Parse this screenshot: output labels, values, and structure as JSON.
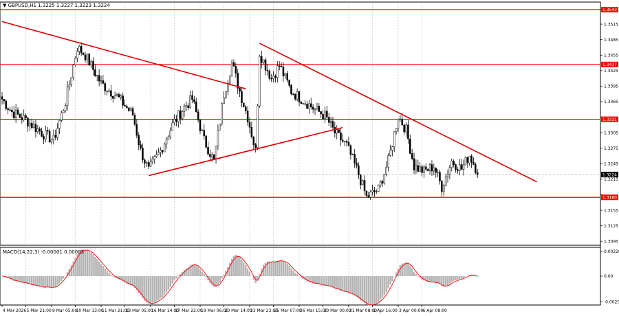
{
  "chart_data": {
    "type": "candlestick",
    "header": {
      "arrow": "▼",
      "text": "GBPUSD,H1 1.3225 1.3227 1.3223 1.3224"
    },
    "price_panel": {
      "ylim": [
        1.309,
        1.3555
      ],
      "ticks": [
        1.3543,
        1.3515,
        1.3485,
        1.3455,
        1.3425,
        1.3395,
        1.3365,
        1.3335,
        1.3305,
        1.3275,
        1.3245,
        1.3215,
        1.3185,
        1.3155,
        1.3125,
        1.3095
      ],
      "tick_labels": [
        "1.3543",
        "1.3515",
        "1.3485",
        "1.3455",
        "1.3425",
        "1.3395",
        "1.3365",
        "1.3335",
        "1.3305",
        "1.3275",
        "1.3245",
        "1.3215",
        "1.3185",
        "1.3155",
        "1.3125",
        "1.3095"
      ],
      "current_price": 1.3224,
      "current_price_label": "1.3224",
      "levels": [
        {
          "value": 1.3543,
          "label": "1.3543"
        },
        {
          "value": 1.3437,
          "label": "1.3437"
        },
        {
          "value": 1.3331,
          "label": "1.3331"
        },
        {
          "value": 1.318,
          "label": "1.3180"
        }
      ],
      "trendlines": [
        {
          "from": [
            0,
            1.352
          ],
          "to": [
            123,
            1.339
          ]
        },
        {
          "from": [
            74,
            1.3222
          ],
          "to": [
            172,
            1.3315
          ]
        },
        {
          "from": [
            130,
            1.3478
          ],
          "to": [
            270,
            1.321
          ]
        }
      ],
      "anchors": [
        [
          0,
          1.337
        ],
        [
          5,
          1.3345
        ],
        [
          12,
          1.333
        ],
        [
          20,
          1.3305
        ],
        [
          26,
          1.329
        ],
        [
          32,
          1.3365
        ],
        [
          38,
          1.347
        ],
        [
          42,
          1.3455
        ],
        [
          50,
          1.34
        ],
        [
          58,
          1.3375
        ],
        [
          66,
          1.334
        ],
        [
          70,
          1.327
        ],
        [
          74,
          1.3232
        ],
        [
          80,
          1.327
        ],
        [
          86,
          1.332
        ],
        [
          92,
          1.3355
        ],
        [
          96,
          1.337
        ],
        [
          102,
          1.329
        ],
        [
          107,
          1.325
        ],
        [
          112,
          1.338
        ],
        [
          116,
          1.344
        ],
        [
          120,
          1.3385
        ],
        [
          124,
          1.3335
        ],
        [
          128,
          1.327
        ],
        [
          130,
          1.346
        ],
        [
          136,
          1.341
        ],
        [
          140,
          1.3435
        ],
        [
          146,
          1.3385
        ],
        [
          152,
          1.3368
        ],
        [
          158,
          1.335
        ],
        [
          163,
          1.3338
        ],
        [
          168,
          1.3305
        ],
        [
          174,
          1.328
        ],
        [
          180,
          1.3225
        ],
        [
          184,
          1.318
        ],
        [
          190,
          1.3195
        ],
        [
          195,
          1.325
        ],
        [
          200,
          1.3338
        ],
        [
          204,
          1.331
        ],
        [
          208,
          1.324
        ],
        [
          213,
          1.323
        ],
        [
          218,
          1.324
        ],
        [
          222,
          1.32
        ],
        [
          227,
          1.325
        ],
        [
          232,
          1.3235
        ],
        [
          236,
          1.3262
        ],
        [
          240,
          1.323
        ]
      ]
    },
    "macd_panel": {
      "label": "MACD(14,22,3) -0.00001 0.00003",
      "ylim": [
        -0.00222,
        0.00222
      ],
      "tick_labels": [
        "0.00228",
        "0.00",
        "-0.00208"
      ],
      "tick_values": [
        0.00228,
        0.0,
        -0.00208
      ]
    },
    "x_axis": {
      "bar_count": 241,
      "labels": [
        {
          "bar": 0,
          "text": "4 Mar 2026"
        },
        {
          "bar": 12,
          "text": "5 Mar 21:00"
        },
        {
          "bar": 25,
          "text": "9 Mar 05:00"
        },
        {
          "bar": 37,
          "text": "10 Mar 13:00"
        },
        {
          "bar": 50,
          "text": "11 Mar 21:00"
        },
        {
          "bar": 62,
          "text": "13 Mar 05:00"
        },
        {
          "bar": 75,
          "text": "16 Mar 14:00"
        },
        {
          "bar": 87,
          "text": "17 Mar 22:00"
        },
        {
          "bar": 100,
          "text": "19 Mar 06:00"
        },
        {
          "bar": 112,
          "text": "20 Mar 14:00"
        },
        {
          "bar": 125,
          "text": "23 Mar 23:00"
        },
        {
          "bar": 137,
          "text": "25 Mar 07:00"
        },
        {
          "bar": 150,
          "text": "26 Mar 15:00"
        },
        {
          "bar": 162,
          "text": "30 Mar 00:00"
        },
        {
          "bar": 175,
          "text": "31 Mar 08:00"
        },
        {
          "bar": 187,
          "text": "1 Apr 16:00"
        },
        {
          "bar": 200,
          "text": "3 Apr 00:00"
        },
        {
          "bar": 212,
          "text": "6 Apr 08:00"
        }
      ]
    },
    "colors": {
      "level_line": "#ff0000",
      "trendline": "#e00000",
      "candle": "#000000",
      "macd_hist": "#b4b4b4",
      "macd_signal": "#ff0000",
      "grid": "#c8c8c8"
    }
  }
}
